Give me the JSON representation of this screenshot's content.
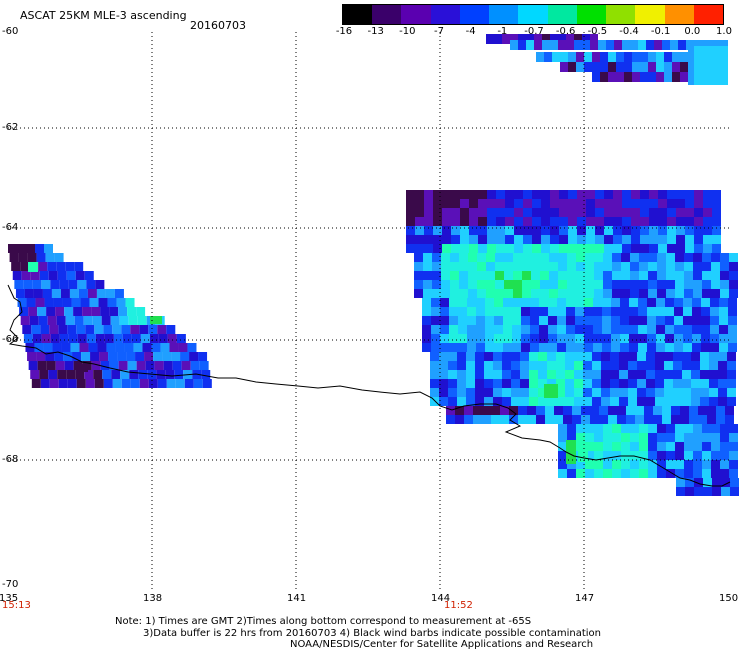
{
  "header": {
    "title": "ASCAT 25KM MLE-3 ascending",
    "date": "20160703"
  },
  "colorbar": {
    "labels": [
      "-16",
      "-13",
      "-10",
      "-7",
      "-4",
      "-1",
      "-0.7",
      "-0.6",
      "-0.5",
      "-0.4",
      "-0.1",
      "0.0",
      "1.0"
    ],
    "colors": [
      "#000000",
      "#3a006a",
      "#5a00b0",
      "#2a10d8",
      "#0040ff",
      "#0090ff",
      "#00d8ff",
      "#00e8a0",
      "#00e000",
      "#90e000",
      "#f0f000",
      "#ff9000",
      "#ff2000"
    ]
  },
  "axes": {
    "lat_labels": [
      "-60",
      "-62",
      "-64",
      "-66",
      "-68",
      "-70"
    ],
    "lon_labels": [
      "135",
      "138",
      "141",
      "144",
      "147",
      "150"
    ]
  },
  "pass_times": [
    "15:13",
    "11:52"
  ],
  "notes": [
    "Note: 1) Times are GMT 2)Times along bottom correspond to measurement at -65S",
    "3)Data buffer is 22 hrs from 20160703 4) Black wind barbs indicate possible contamination",
    "NOAA/NESDIS/Center for Satellite Applications and Research"
  ],
  "palette": {
    "dark": "#3a0a4a",
    "purple": "#5a10b8",
    "navy": "#2010d0",
    "blue": "#1030f0",
    "midblue": "#1060ff",
    "lightblue": "#20a0ff",
    "sky": "#20d0ff",
    "cyan": "#20f0e0",
    "aqua": "#20ffb0",
    "green": "#20e050"
  }
}
